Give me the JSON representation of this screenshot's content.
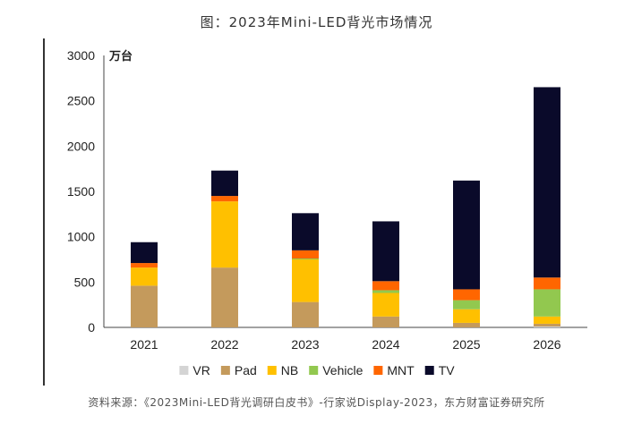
{
  "title": "图：2023年Mini-LED背光市场情况",
  "source": "资料来源：《2023Mini-LED背光调研白皮书》-行家说Display-2023，东方财富证券研究所",
  "chart_data": {
    "type": "bar",
    "stacked": true,
    "unit": "万台",
    "categories": [
      "2021",
      "2022",
      "2023",
      "2024",
      "2025",
      "2026"
    ],
    "ylim": [
      0,
      3000
    ],
    "yticks": [
      0,
      500,
      1000,
      1500,
      2000,
      2500,
      3000
    ],
    "grid": false,
    "legend_position": "bottom",
    "series": [
      {
        "name": "VR",
        "color": "#d4d4d4",
        "values": [
          0,
          0,
          0,
          0,
          0,
          10
        ]
      },
      {
        "name": "Pad",
        "color": "#c49a5c",
        "values": [
          460,
          660,
          280,
          120,
          50,
          30
        ]
      },
      {
        "name": "NB",
        "color": "#ffc000",
        "values": [
          200,
          730,
          470,
          260,
          150,
          80
        ]
      },
      {
        "name": "Vehicle",
        "color": "#92c84f",
        "values": [
          0,
          0,
          10,
          30,
          100,
          300
        ]
      },
      {
        "name": "MNT",
        "color": "#ff6600",
        "values": [
          50,
          60,
          90,
          100,
          120,
          130
        ]
      },
      {
        "name": "TV",
        "color": "#0a0a2a",
        "values": [
          230,
          280,
          410,
          660,
          1200,
          2100
        ]
      }
    ]
  }
}
